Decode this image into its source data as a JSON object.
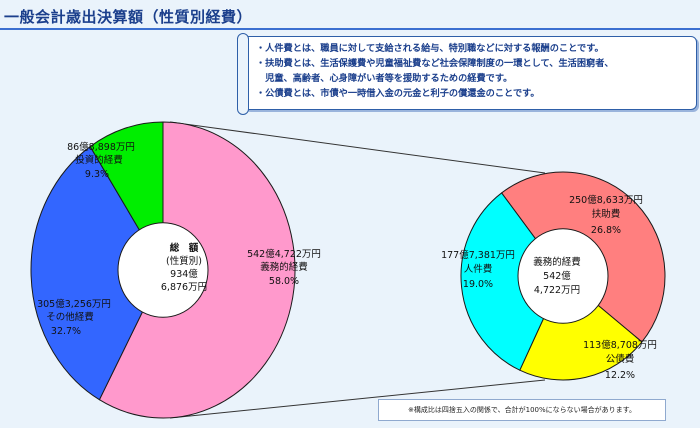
{
  "title": "一般会計歳出決算額（性質別経費）",
  "notes": [
    "・人件費とは、職員に対して支給される給与、特別職などに対する報酬のことです。",
    "・扶助費とは、生活保護費や児童福祉費など社会保障制度の一環として、生活困窮者、",
    "　児童、高齢者、心身障がい者等を援助するための経費です。",
    "・公債費とは、市債や一時借入金の元金と利子の償還金のことです。"
  ],
  "footnote": "※構成比は四捨五入の関係で、合計が100%にならない場合があります。",
  "colors": {
    "pink": "#ff99cc",
    "blue": "#3366ff",
    "green": "#00ee00",
    "salmon": "#ff7f7f",
    "cyan": "#00ffff",
    "yellow": "#ffff00"
  },
  "chart_data": [
    {
      "type": "pie",
      "center_label": [
        "総　額",
        "(性質別)",
        "934億",
        "6,876万円"
      ],
      "slices": [
        {
          "label": "義務的経費",
          "amount": "542億4,722万円",
          "percent": "58.0%",
          "value": 58.0,
          "color": "#ff99cc"
        },
        {
          "label": "その他経費",
          "amount": "305億3,256万円",
          "percent": "32.7%",
          "value": 32.7,
          "color": "#3366ff"
        },
        {
          "label": "投資的経費",
          "amount": "86億8,898万円",
          "percent": "9.3%",
          "value": 9.3,
          "color": "#00ee00"
        }
      ]
    },
    {
      "type": "pie",
      "center_label": [
        "義務的経費",
        "542億",
        "4,722万円"
      ],
      "slices": [
        {
          "label": "扶助費",
          "amount": "250億8,633万円",
          "percent": "26.8%",
          "value": 26.8,
          "color": "#ff7f7f"
        },
        {
          "label": "公債費",
          "amount": "113億8,708万円",
          "percent": "12.2%",
          "value": 12.2,
          "color": "#ffff00"
        },
        {
          "label": "人件費",
          "amount": "177億7,381万円",
          "percent": "19.0%",
          "value": 19.0,
          "color": "#00ffff"
        }
      ]
    }
  ]
}
